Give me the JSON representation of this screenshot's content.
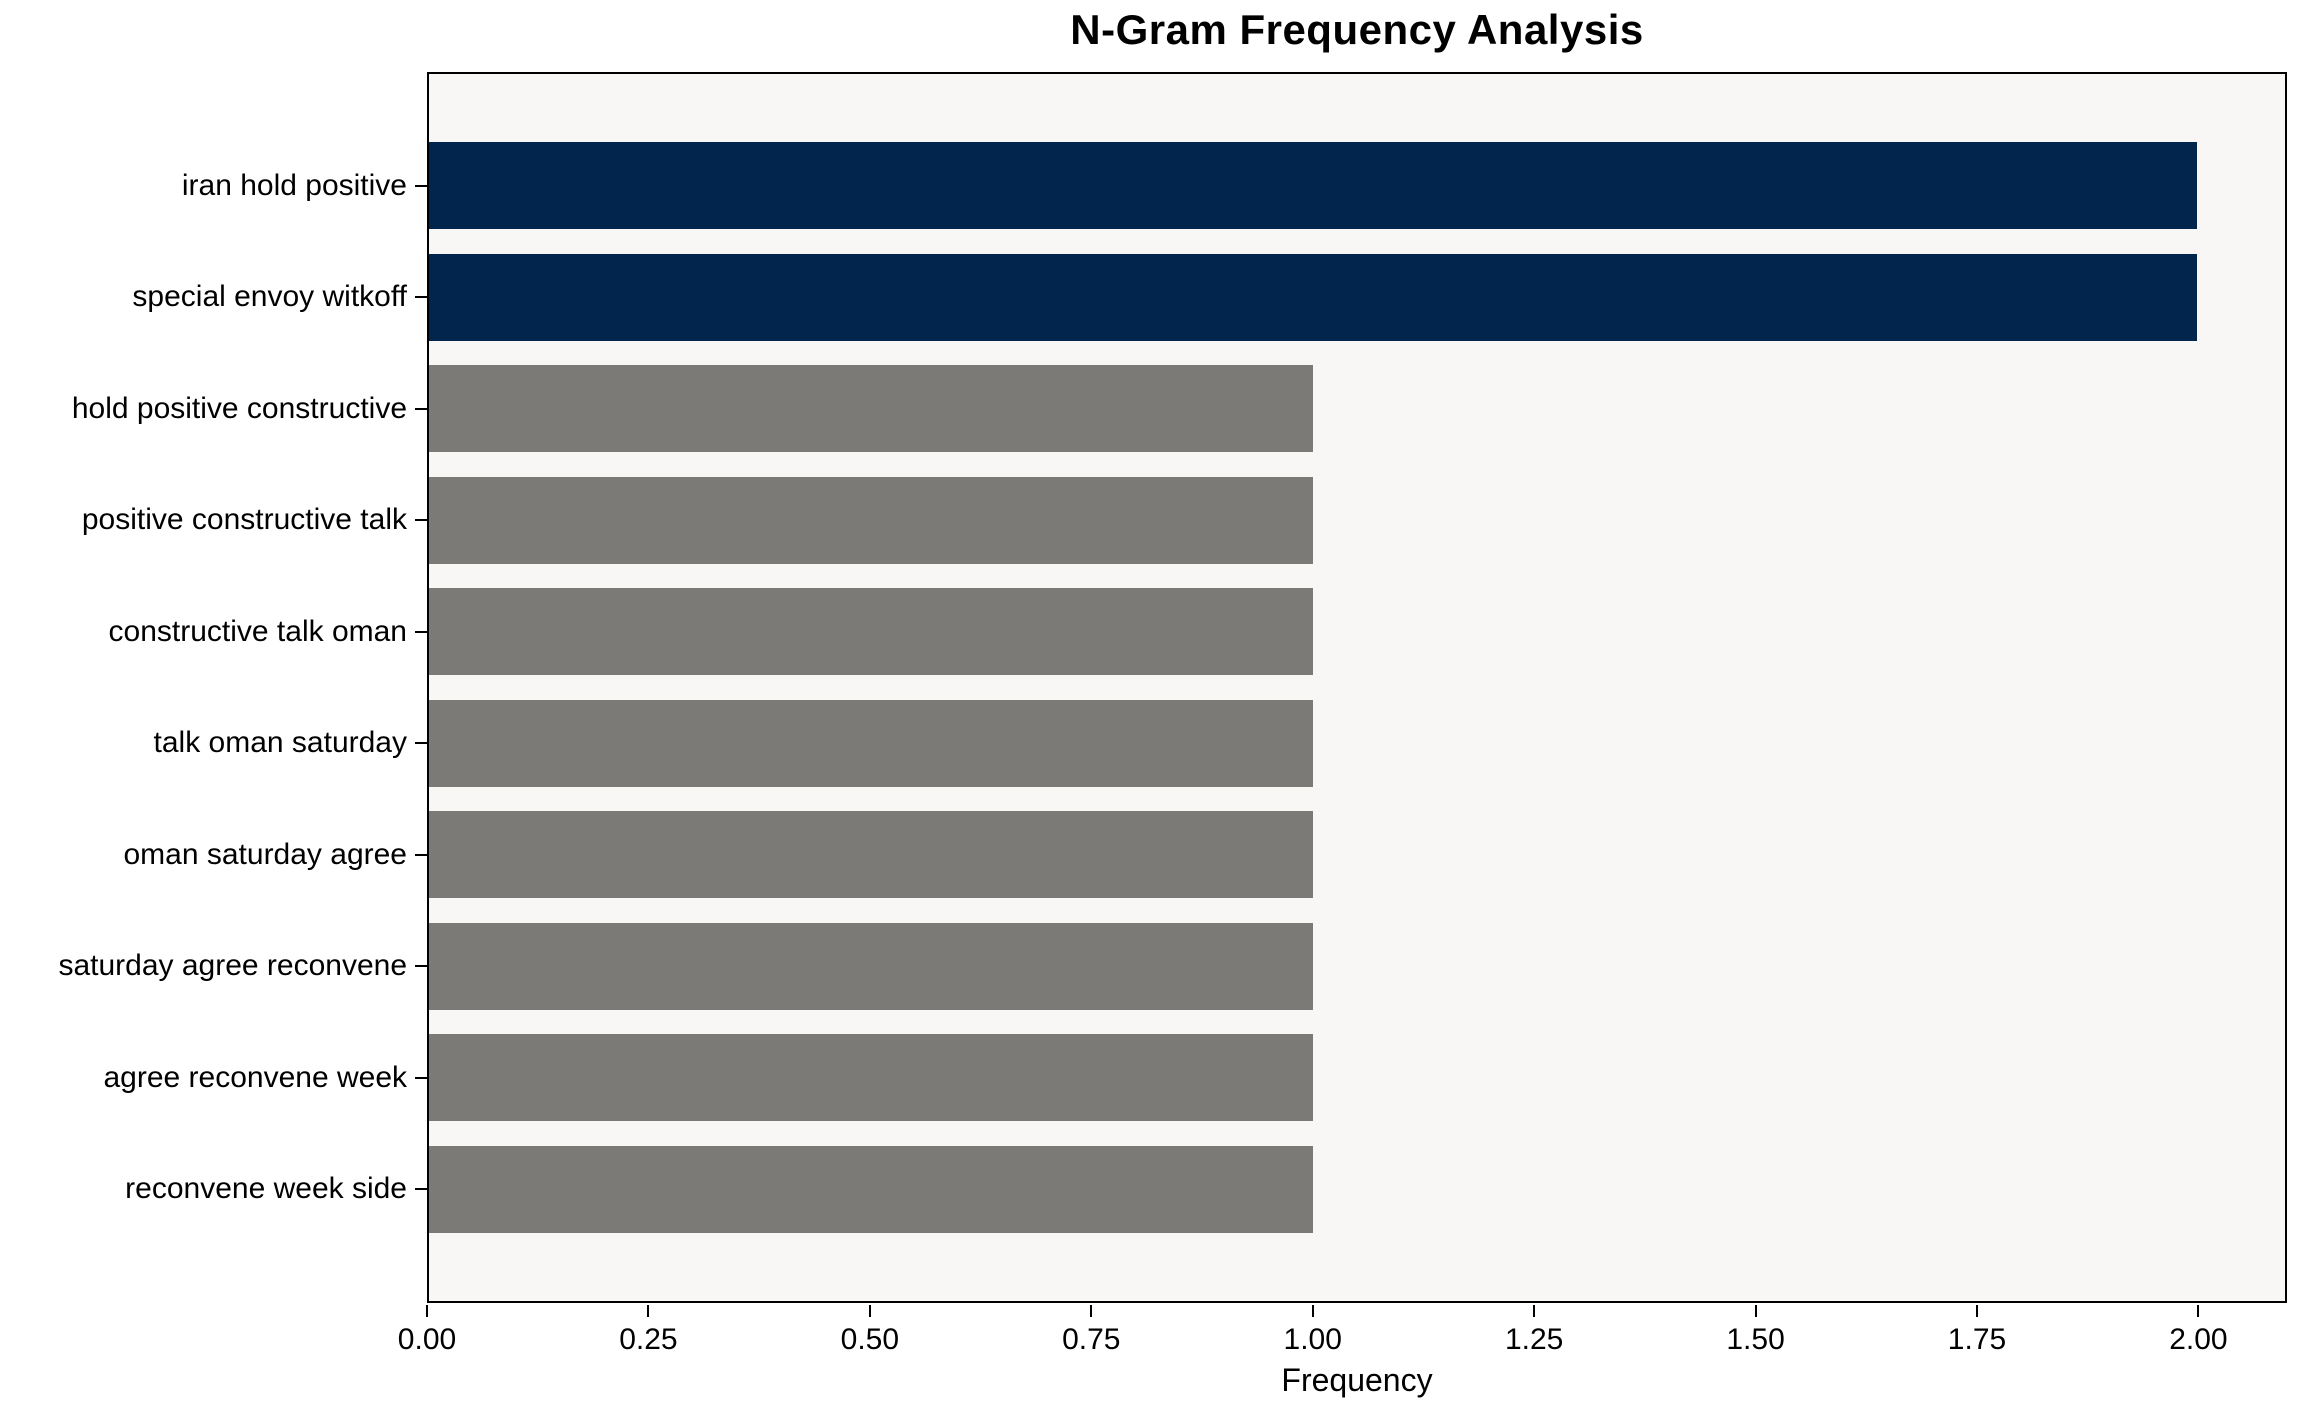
{
  "chart_data": {
    "type": "bar",
    "orientation": "horizontal",
    "title": "N-Gram Frequency Analysis",
    "xlabel": "Frequency",
    "ylabel": "",
    "categories": [
      "iran hold positive",
      "special envoy witkoff",
      "hold positive constructive",
      "positive constructive talk",
      "constructive talk oman",
      "talk oman saturday",
      "oman saturday agree",
      "saturday agree reconvene",
      "agree reconvene week",
      "reconvene week side"
    ],
    "values": [
      2,
      2,
      1,
      1,
      1,
      1,
      1,
      1,
      1,
      1
    ],
    "bar_colors": [
      "#02254d",
      "#02254d",
      "#7b7a77",
      "#7b7a77",
      "#7b7a77",
      "#7b7a77",
      "#7b7a77",
      "#7b7a77",
      "#7b7a77",
      "#7b7a77"
    ],
    "xlim": [
      0,
      2.1
    ],
    "xticks": [
      0.0,
      0.25,
      0.5,
      0.75,
      1.0,
      1.25,
      1.5,
      1.75,
      2.0
    ],
    "xtick_labels": [
      "0.00",
      "0.25",
      "0.50",
      "0.75",
      "1.00",
      "1.25",
      "1.50",
      "1.75",
      "2.00"
    ],
    "grid": false,
    "legend_position": "none",
    "colors": {
      "highlight_bar": "#02254d",
      "default_bar": "#7b7a77",
      "plot_background": "#f8f7f6",
      "figure_background": "#ffffff",
      "spine": "#000000",
      "text": "#000000"
    }
  }
}
